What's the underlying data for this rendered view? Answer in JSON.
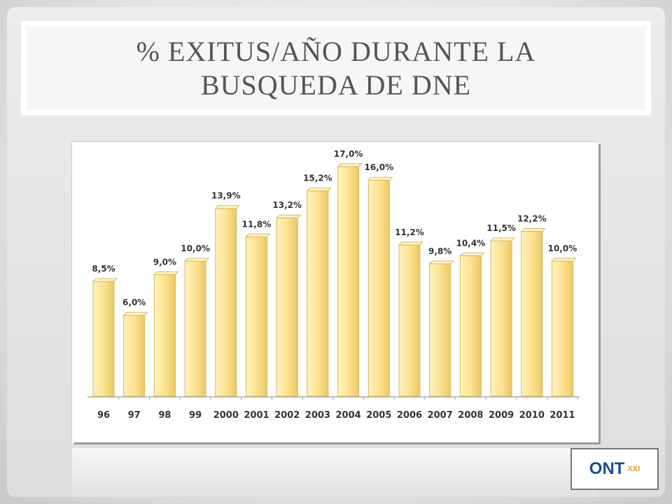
{
  "chart_data": {
    "type": "bar",
    "title": "% EXITUS/AÑO DURANTE LA BUSQUEDA DE DNE",
    "categories": [
      "96",
      "97",
      "98",
      "99",
      "2000",
      "2001",
      "2002",
      "2003",
      "2004",
      "2005",
      "2006",
      "2007",
      "2008",
      "2009",
      "2010",
      "2011"
    ],
    "values": [
      8.5,
      6.0,
      9.0,
      10.0,
      13.9,
      11.8,
      13.2,
      15.2,
      17.0,
      16.0,
      11.2,
      9.8,
      10.4,
      11.5,
      12.2,
      10.0
    ],
    "value_labels": [
      "8,5%",
      "6,0%",
      "9,0%",
      "10,0%",
      "13,9%",
      "11,8%",
      "13,2%",
      "15,2%",
      "17,0%",
      "16,0%",
      "11,2%",
      "9,8%",
      "10,4%",
      "11,5%",
      "12,2%",
      "10,0%"
    ],
    "color": "#fde38f"
  },
  "logo": {
    "name": "ONT",
    "subtitle": "XXI"
  }
}
